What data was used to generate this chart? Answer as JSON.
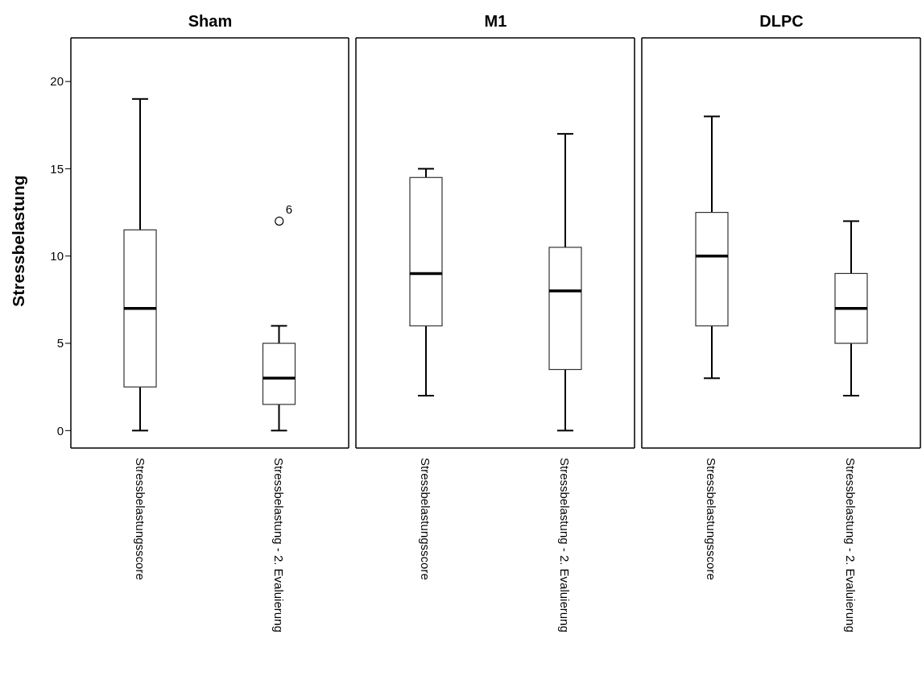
{
  "chart_data": [
    {
      "type": "box",
      "title": "Sham",
      "ylabel": "Stressbelastung",
      "categories": [
        "Stressbelastungsscore",
        "Stressbelastung - 2. Evaluierung"
      ],
      "ylim": [
        -1,
        22.5
      ],
      "yticks": [
        0,
        5,
        10,
        15,
        20
      ],
      "grid": false,
      "color": "#ffffff",
      "boxes": [
        {
          "low": 0,
          "q1": 2.5,
          "median": 7,
          "q3": 11.5,
          "high": 19
        },
        {
          "low": 0,
          "q1": 1.5,
          "median": 3,
          "q3": 5,
          "high": 6,
          "outliers": [
            12
          ]
        }
      ],
      "annotations": [
        "6"
      ]
    },
    {
      "type": "box",
      "title": "M1",
      "categories": [
        "Stressbelastungsscore",
        "Stressbelastung - 2. Evaluierung"
      ],
      "ylim": [
        -1,
        22.5
      ],
      "yticks": [
        0,
        5,
        10,
        15,
        20
      ],
      "tick_labels": "x",
      "grid": false,
      "color": "#ffffff",
      "boxes": [
        {
          "low": 2,
          "q1": 6,
          "median": 9,
          "q3": 14.5,
          "high": 15
        },
        {
          "low": 0,
          "q1": 3.5,
          "median": 8,
          "q3": 10.5,
          "high": 17
        }
      ]
    },
    {
      "type": "box",
      "title": "DLPC",
      "categories": [
        "Stressbelastungsscore",
        "Stressbelastung - 2. Evaluierung"
      ],
      "ylim": [
        -1,
        22.5
      ],
      "yticks": [
        0,
        5,
        10,
        15,
        20
      ],
      "tick_labels": "x",
      "grid": false,
      "color": "#ffffff",
      "boxes": [
        {
          "low": 3,
          "q1": 6,
          "median": 10,
          "q3": 12.5,
          "high": 18
        },
        {
          "low": 2,
          "q1": 5,
          "median": 7,
          "q3": 9,
          "high": 12
        }
      ]
    }
  ]
}
